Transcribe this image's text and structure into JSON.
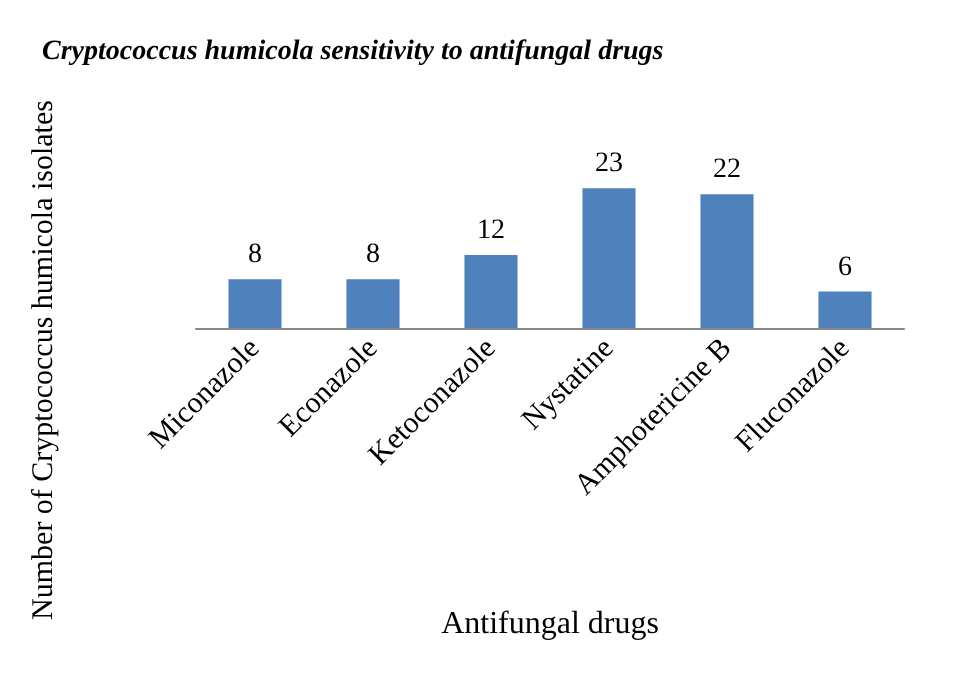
{
  "chart_data": {
    "type": "bar",
    "title": "Cryptococcus humicola sensitivity to antifungal drugs",
    "xlabel": "Antifungal drugs",
    "ylabel": "Number of Cryptococcus humicola isolates",
    "categories": [
      "Miconazole",
      "Econazole",
      "Ketoconazole",
      "Nystatine",
      "Amphotericine B",
      "Fluconazole"
    ],
    "values": [
      8,
      8,
      12,
      23,
      22,
      6
    ],
    "color": "#4f81bd",
    "data_labels": true,
    "grid": false
  }
}
